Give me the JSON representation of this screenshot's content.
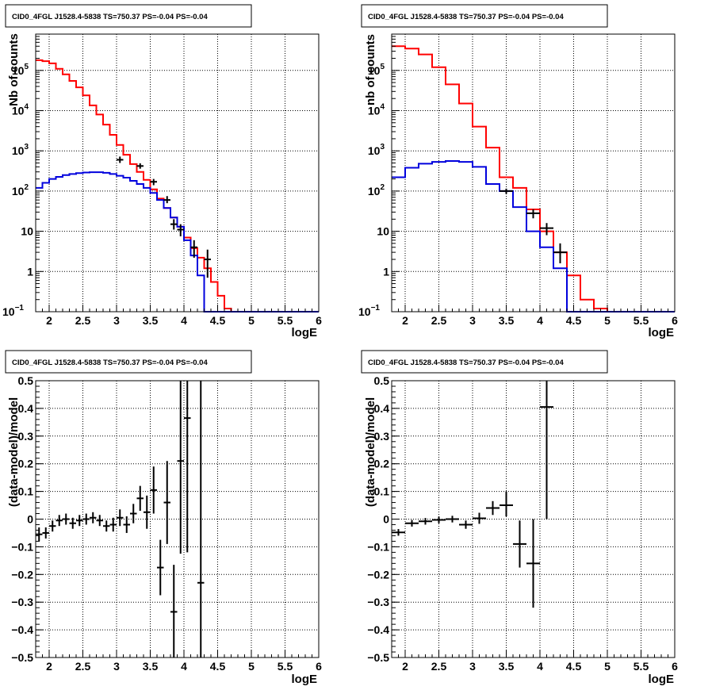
{
  "colors": {
    "model": "#ff0000",
    "model_alt": "#0000dd",
    "data": "#000000"
  },
  "chart_data": [
    {
      "type": "line",
      "title": "CID0_4FGL J1528.4-5838 TS=750.37 PS=-0.04 PS=-0.04",
      "xlabel": "logE",
      "ylabel": "Nb of counts",
      "xlim": [
        1.8,
        6.0
      ],
      "ylim": [
        0.1,
        800000
      ],
      "yscale": "log",
      "grid": true,
      "x_ticks": [
        "2",
        "2.5",
        "3",
        "3.5",
        "4",
        "4.5",
        "5",
        "5.5",
        "6"
      ],
      "y_ticks": [
        {
          "v": 0.1,
          "base": "10",
          "exp": "−1"
        },
        {
          "v": 1,
          "text": "1"
        },
        {
          "v": 10,
          "text": "10"
        },
        {
          "v": 100,
          "base": "10",
          "exp": "2"
        },
        {
          "v": 1000,
          "base": "10",
          "exp": "3"
        },
        {
          "v": 10000,
          "base": "10",
          "exp": "4"
        },
        {
          "v": 100000,
          "base": "10",
          "exp": "5"
        }
      ],
      "bin_edges": [
        1.8,
        1.9,
        2.0,
        2.1,
        2.2,
        2.3,
        2.4,
        2.5,
        2.6,
        2.7,
        2.8,
        2.9,
        3.0,
        3.1,
        3.2,
        3.3,
        3.4,
        3.5,
        3.6,
        3.7,
        3.8,
        3.9,
        4.0,
        4.1,
        4.2,
        4.3,
        4.4,
        4.5,
        4.6,
        4.7,
        4.8,
        4.9,
        5.0,
        5.1,
        5.2,
        5.3,
        5.4,
        5.5,
        5.6,
        5.7,
        5.8,
        5.9,
        6.0
      ],
      "series": [
        {
          "color": "#ff0000",
          "values": [
            180000,
            170000,
            150000,
            110000,
            80000,
            55000,
            38000,
            24000,
            13500,
            8000,
            4500,
            2500,
            1400,
            800,
            470,
            300,
            190,
            110,
            65,
            38,
            22,
            13,
            7,
            3.8,
            2.2,
            1.2,
            0.55,
            0.25,
            0.12,
            0.1,
            0.1,
            0.1,
            0.1,
            0.1,
            0.1,
            0.1,
            0.1,
            0.1,
            0.1,
            0.1,
            0.1,
            0.1
          ]
        },
        {
          "color": "#0000dd",
          "values": [
            120,
            160,
            200,
            225,
            250,
            265,
            280,
            290,
            295,
            295,
            285,
            265,
            240,
            215,
            180,
            150,
            120,
            90,
            60,
            38,
            22,
            13,
            6,
            2.5,
            0.8,
            0.1,
            0.1,
            0.1,
            0.1,
            0.1,
            0.1,
            0.1,
            0.1,
            0.1,
            0.1,
            0.1,
            0.1,
            0.1,
            0.1,
            0.1,
            0.1,
            0.1
          ]
        }
      ],
      "data_points": [
        {
          "x": 3.05,
          "y": 600,
          "lo": 500,
          "hi": 720,
          "xerr": 0.05
        },
        {
          "x": 3.35,
          "y": 420,
          "lo": 360,
          "hi": 490,
          "xerr": 0.05
        },
        {
          "x": 3.55,
          "y": 170,
          "lo": 140,
          "hi": 200,
          "xerr": 0.05
        },
        {
          "x": 3.75,
          "y": 60,
          "lo": 50,
          "hi": 75,
          "xerr": 0.05
        },
        {
          "x": 3.85,
          "y": 15,
          "lo": 11,
          "hi": 20,
          "xerr": 0.05
        },
        {
          "x": 3.95,
          "y": 11,
          "lo": 7.5,
          "hi": 15,
          "xerr": 0.05
        },
        {
          "x": 4.15,
          "y": 4,
          "lo": 2.2,
          "hi": 6,
          "xerr": 0.05
        },
        {
          "x": 4.35,
          "y": 2,
          "lo": 0.7,
          "hi": 3.5,
          "xerr": 0.05
        }
      ]
    },
    {
      "type": "line",
      "title": "CID0_4FGL J1528.4-5838 TS=750.37 PS=-0.04 PS=-0.04",
      "xlabel": "logE",
      "ylabel": "nb of counts",
      "xlim": [
        1.8,
        6.0
      ],
      "ylim": [
        0.1,
        800000
      ],
      "yscale": "log",
      "grid": true,
      "x_ticks": [
        "2",
        "2.5",
        "3",
        "3.5",
        "4",
        "4.5",
        "5",
        "5.5",
        "6"
      ],
      "y_ticks": [
        {
          "v": 0.1,
          "base": "10",
          "exp": "−1"
        },
        {
          "v": 1,
          "text": "1"
        },
        {
          "v": 10,
          "text": "10"
        },
        {
          "v": 100,
          "base": "10",
          "exp": "2"
        },
        {
          "v": 1000,
          "base": "10",
          "exp": "3"
        },
        {
          "v": 10000,
          "base": "10",
          "exp": "4"
        },
        {
          "v": 100000,
          "base": "10",
          "exp": "5"
        }
      ],
      "bin_edges": [
        1.8,
        2.0,
        2.2,
        2.4,
        2.6,
        2.8,
        3.0,
        3.2,
        3.4,
        3.6,
        3.8,
        4.0,
        4.2,
        4.4,
        4.6,
        4.8,
        5.0,
        5.2,
        5.4,
        5.6,
        5.8,
        6.0
      ],
      "series": [
        {
          "color": "#ff0000",
          "values": [
            400000,
            350000,
            250000,
            120000,
            45000,
            15000,
            4000,
            1200,
            220,
            120,
            35,
            10,
            3,
            0.8,
            0.2,
            0.12,
            0.1,
            0.1,
            0.1,
            0.1,
            0.1
          ]
        },
        {
          "color": "#0000dd",
          "values": [
            220,
            380,
            480,
            530,
            560,
            530,
            400,
            150,
            100,
            40,
            10,
            4,
            1.2,
            0.1,
            0.1,
            0.1,
            0.1,
            0.1,
            0.1,
            0.1,
            0.1
          ]
        }
      ],
      "data_points": [
        {
          "x": 3.5,
          "y": 100,
          "lo": 85,
          "hi": 115,
          "xerr": 0.1
        },
        {
          "x": 3.9,
          "y": 28,
          "lo": 21,
          "hi": 35,
          "xerr": 0.1
        },
        {
          "x": 4.1,
          "y": 12,
          "lo": 8,
          "hi": 16,
          "xerr": 0.1
        },
        {
          "x": 4.3,
          "y": 3,
          "lo": 1.6,
          "hi": 5,
          "xerr": 0.1
        }
      ]
    },
    {
      "type": "scatter",
      "title": "CID0_4FGL J1528.4-5838 TS=750.37 PS=-0.04 PS=-0.04",
      "xlabel": "logE",
      "ylabel": "(data-model)/model",
      "xlim": [
        1.8,
        6.0
      ],
      "ylim": [
        -0.5,
        0.5
      ],
      "grid": true,
      "x_ticks": [
        "2",
        "2.5",
        "3",
        "3.5",
        "4",
        "4.5",
        "5",
        "5.5",
        "6"
      ],
      "y_ticks": [
        {
          "v": -0.5,
          "text": "−0.5"
        },
        {
          "v": -0.4,
          "text": "−0.4"
        },
        {
          "v": -0.3,
          "text": "−0.3"
        },
        {
          "v": -0.2,
          "text": "−0.2"
        },
        {
          "v": -0.1,
          "text": "−0.1"
        },
        {
          "v": 0,
          "text": "0"
        },
        {
          "v": 0.1,
          "text": "0.1"
        },
        {
          "v": 0.2,
          "text": "0.2"
        },
        {
          "v": 0.3,
          "text": "0.3"
        },
        {
          "v": 0.4,
          "text": "0.4"
        },
        {
          "v": 0.5,
          "text": "0.5"
        }
      ],
      "data_points": [
        {
          "x": 1.85,
          "y": -0.055,
          "lo": -0.08,
          "hi": -0.03,
          "xerr": 0.05
        },
        {
          "x": 1.95,
          "y": -0.05,
          "lo": -0.07,
          "hi": -0.03,
          "xerr": 0.05
        },
        {
          "x": 2.05,
          "y": -0.025,
          "lo": -0.045,
          "hi": -0.005,
          "xerr": 0.05
        },
        {
          "x": 2.15,
          "y": -0.005,
          "lo": -0.025,
          "hi": 0.015,
          "xerr": 0.05
        },
        {
          "x": 2.25,
          "y": 0.0,
          "lo": -0.02,
          "hi": 0.02,
          "xerr": 0.05
        },
        {
          "x": 2.35,
          "y": -0.015,
          "lo": -0.035,
          "hi": 0.005,
          "xerr": 0.05
        },
        {
          "x": 2.45,
          "y": -0.005,
          "lo": -0.025,
          "hi": 0.015,
          "xerr": 0.05
        },
        {
          "x": 2.55,
          "y": 0.0,
          "lo": -0.02,
          "hi": 0.02,
          "xerr": 0.05
        },
        {
          "x": 2.65,
          "y": 0.005,
          "lo": -0.015,
          "hi": 0.025,
          "xerr": 0.05
        },
        {
          "x": 2.75,
          "y": -0.005,
          "lo": -0.025,
          "hi": 0.015,
          "xerr": 0.05
        },
        {
          "x": 2.85,
          "y": -0.025,
          "lo": -0.045,
          "hi": -0.005,
          "xerr": 0.05
        },
        {
          "x": 2.95,
          "y": -0.02,
          "lo": -0.045,
          "hi": 0.005,
          "xerr": 0.05
        },
        {
          "x": 3.05,
          "y": 0.005,
          "lo": -0.025,
          "hi": 0.035,
          "xerr": 0.05
        },
        {
          "x": 3.15,
          "y": -0.02,
          "lo": -0.05,
          "hi": 0.01,
          "xerr": 0.05
        },
        {
          "x": 3.25,
          "y": 0.02,
          "lo": -0.015,
          "hi": 0.055,
          "xerr": 0.05
        },
        {
          "x": 3.35,
          "y": 0.075,
          "lo": 0.03,
          "hi": 0.12,
          "xerr": 0.05
        },
        {
          "x": 3.45,
          "y": 0.025,
          "lo": -0.035,
          "hi": 0.085,
          "xerr": 0.05
        },
        {
          "x": 3.55,
          "y": 0.105,
          "lo": 0.02,
          "hi": 0.19,
          "xerr": 0.05
        },
        {
          "x": 3.65,
          "y": -0.175,
          "lo": -0.275,
          "hi": -0.075,
          "xerr": 0.05
        },
        {
          "x": 3.75,
          "y": 0.06,
          "lo": -0.09,
          "hi": 0.21,
          "xerr": 0.05
        },
        {
          "x": 3.85,
          "y": -0.335,
          "lo": -0.5,
          "hi": -0.165,
          "xerr": 0.05
        },
        {
          "x": 3.95,
          "y": 0.21,
          "lo": -0.125,
          "hi": 0.5,
          "xerr": 0.05
        },
        {
          "x": 4.05,
          "y": 0.365,
          "lo": -0.12,
          "hi": 0.5,
          "xerr": 0.05
        },
        {
          "x": 4.25,
          "y": -0.23,
          "lo": -0.5,
          "hi": 0.5,
          "xerr": 0.05
        }
      ]
    },
    {
      "type": "scatter",
      "title": "CID0_4FGL J1528.4-5838 TS=750.37 PS=-0.04 PS=-0.04",
      "xlabel": "logE",
      "ylabel": "(data-model)/model",
      "xlim": [
        1.8,
        6.0
      ],
      "ylim": [
        -0.5,
        0.5
      ],
      "grid": true,
      "x_ticks": [
        "2",
        "2.5",
        "3",
        "3.5",
        "4",
        "4.5",
        "5",
        "5.5",
        "6"
      ],
      "y_ticks": [
        {
          "v": -0.5,
          "text": "−0.5"
        },
        {
          "v": -0.4,
          "text": "−0.4"
        },
        {
          "v": -0.3,
          "text": "−0.3"
        },
        {
          "v": -0.2,
          "text": "−0.2"
        },
        {
          "v": -0.1,
          "text": "−0.1"
        },
        {
          "v": 0,
          "text": "0"
        },
        {
          "v": 0.1,
          "text": "0.1"
        },
        {
          "v": 0.2,
          "text": "0.2"
        },
        {
          "v": 0.3,
          "text": "0.3"
        },
        {
          "v": 0.4,
          "text": "0.4"
        },
        {
          "v": 0.5,
          "text": "0.5"
        }
      ],
      "data_points": [
        {
          "x": 1.9,
          "y": -0.048,
          "lo": -0.06,
          "hi": -0.036,
          "xerr": 0.1
        },
        {
          "x": 2.1,
          "y": -0.015,
          "lo": -0.027,
          "hi": -0.003,
          "xerr": 0.1
        },
        {
          "x": 2.3,
          "y": -0.008,
          "lo": -0.02,
          "hi": 0.004,
          "xerr": 0.1
        },
        {
          "x": 2.5,
          "y": -0.003,
          "lo": -0.015,
          "hi": 0.009,
          "xerr": 0.1
        },
        {
          "x": 2.7,
          "y": 0.0,
          "lo": -0.012,
          "hi": 0.012,
          "xerr": 0.1
        },
        {
          "x": 2.9,
          "y": -0.02,
          "lo": -0.035,
          "hi": -0.005,
          "xerr": 0.1
        },
        {
          "x": 3.1,
          "y": 0.003,
          "lo": -0.017,
          "hi": 0.023,
          "xerr": 0.1
        },
        {
          "x": 3.3,
          "y": 0.04,
          "lo": 0.015,
          "hi": 0.065,
          "xerr": 0.1
        },
        {
          "x": 3.5,
          "y": 0.05,
          "lo": 0.01,
          "hi": 0.1,
          "xerr": 0.1
        },
        {
          "x": 3.7,
          "y": -0.09,
          "lo": -0.175,
          "hi": -0.005,
          "xerr": 0.1
        },
        {
          "x": 3.9,
          "y": -0.16,
          "lo": -0.32,
          "hi": 0.0,
          "xerr": 0.1
        },
        {
          "x": 4.1,
          "y": 0.405,
          "lo": 0.0,
          "hi": 0.5,
          "xerr": 0.1
        }
      ]
    }
  ]
}
